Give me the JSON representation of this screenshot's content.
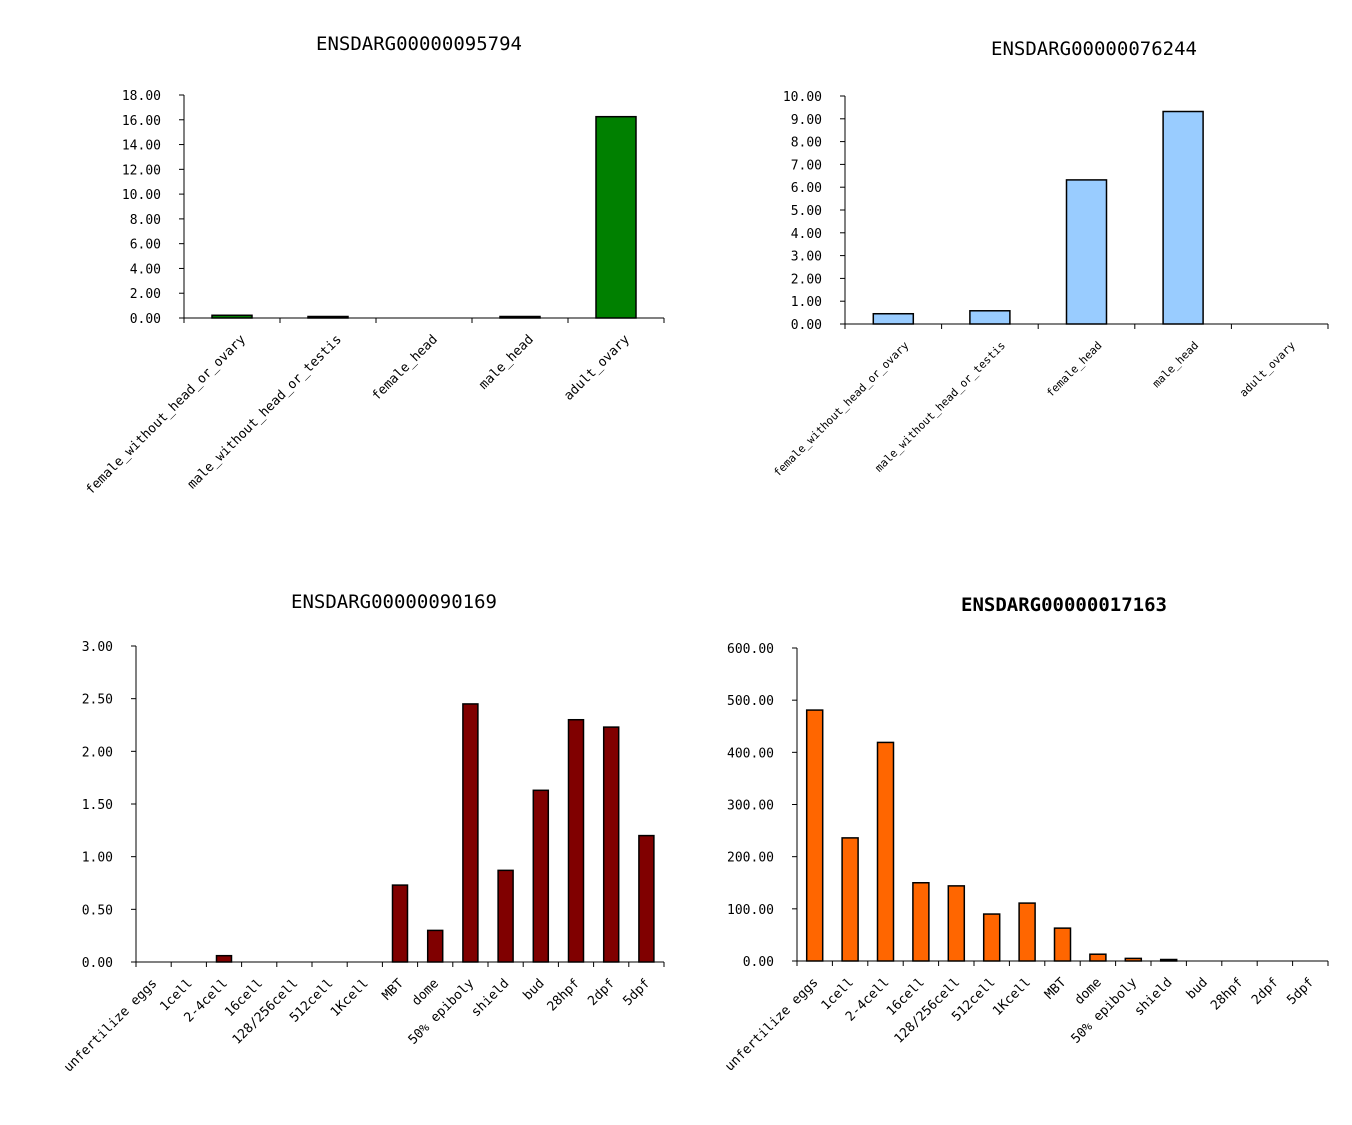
{
  "chart_data": [
    {
      "type": "bar",
      "title": "ENSDARG00000095794",
      "categories": [
        "female_without_head_or_ovary",
        "male_without_head_or_testis",
        "female_head",
        "male_head",
        "adult_ovary"
      ],
      "values": [
        0.22,
        0.12,
        0.0,
        0.1,
        16.25
      ],
      "ylim": [
        0,
        18
      ],
      "yticks": [
        "0.00",
        "2.00",
        "4.00",
        "6.00",
        "8.00",
        "10.00",
        "12.00",
        "14.00",
        "16.00",
        "18.00"
      ],
      "bar_color": "#008000",
      "xlabel": "",
      "ylabel": ""
    },
    {
      "type": "bar",
      "title": "ENSDARG00000076244",
      "categories": [
        "female_without_head_or_ovary",
        "male_without_head_or_testis",
        "female_head",
        "male_head",
        "adult_ovary"
      ],
      "values": [
        0.45,
        0.58,
        6.32,
        9.32,
        0.0
      ],
      "ylim": [
        0,
        10
      ],
      "yticks": [
        "0.00",
        "1.00",
        "2.00",
        "3.00",
        "4.00",
        "5.00",
        "6.00",
        "7.00",
        "8.00",
        "9.00",
        "10.00"
      ],
      "bar_color": "#99ccff",
      "xlabel": "",
      "ylabel": ""
    },
    {
      "type": "bar",
      "title": "ENSDARG00000090169",
      "categories": [
        "unfertilize eggs",
        "1cell",
        "2-4cell",
        "16cell",
        "128/256cell",
        "512cell",
        "1Kcell",
        "MBT",
        "dome",
        "50% epiboly",
        "shield",
        "bud",
        "28hpf",
        "2dpf",
        "5dpf"
      ],
      "values": [
        0,
        0,
        0.06,
        0,
        0,
        0,
        0,
        0.73,
        0.3,
        2.45,
        0.87,
        1.63,
        2.3,
        2.23,
        1.2
      ],
      "ylim": [
        0,
        3
      ],
      "yticks": [
        "0.00",
        "0.50",
        "1.00",
        "1.50",
        "2.00",
        "2.50",
        "3.00"
      ],
      "bar_color": "#800000",
      "xlabel": "",
      "ylabel": ""
    },
    {
      "type": "bar",
      "title": "ENSDARG00000017163",
      "categories": [
        "unfertilize eggs",
        "1cell",
        "2-4cell",
        "16cell",
        "128/256cell",
        "512cell",
        "1Kcell",
        "MBT",
        "dome",
        "50% epiboly",
        "shield",
        "bud",
        "28hpf",
        "2dpf",
        "5dpf"
      ],
      "values": [
        481,
        236,
        419,
        150,
        144,
        90,
        111,
        63,
        13,
        5,
        1.5,
        0,
        0,
        0,
        0
      ],
      "ylim": [
        0,
        600
      ],
      "yticks": [
        "0.00",
        "100.00",
        "200.00",
        "300.00",
        "400.00",
        "500.00",
        "600.00"
      ],
      "bar_color": "#ff6600",
      "xlabel": "",
      "ylabel": ""
    }
  ]
}
